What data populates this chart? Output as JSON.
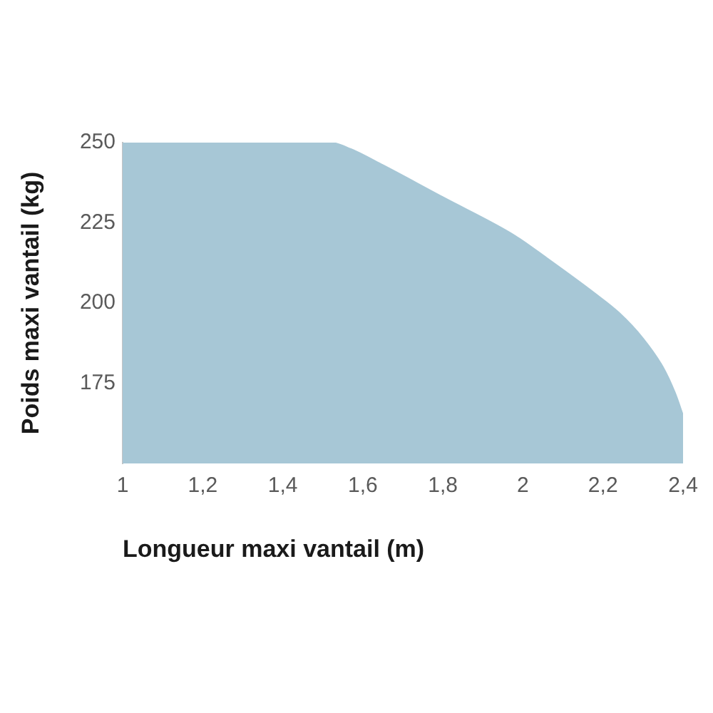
{
  "chart_data": {
    "type": "area",
    "xlabel": "Longueur maxi vantail (m)",
    "ylabel": "Poids maxi vantail (kg)",
    "x": [
      1,
      1.52,
      1.57,
      1.65,
      1.8,
      1.98,
      2.06,
      2.18,
      2.24,
      2.3,
      2.35,
      2.38,
      2.4
    ],
    "values": [
      250,
      250,
      248,
      243,
      233,
      221,
      214,
      203,
      197,
      189,
      180,
      172,
      165
    ],
    "color": "#a7c7d6",
    "xlim": [
      1,
      2.4
    ],
    "xticks": [
      1,
      {
        "value": 1.2,
        "label": "1,2"
      },
      {
        "value": 1.4,
        "label": "1,4"
      },
      {
        "value": 1.6,
        "label": "1,6"
      },
      {
        "value": 1.8,
        "label": "1,8"
      },
      2,
      {
        "value": 2.2,
        "label": "2,2"
      },
      {
        "value": 2.4,
        "label": "2,4"
      }
    ],
    "ylim": [
      150,
      250
    ],
    "yticks": [
      175,
      200,
      225,
      250
    ],
    "grid": false,
    "legend": false
  }
}
